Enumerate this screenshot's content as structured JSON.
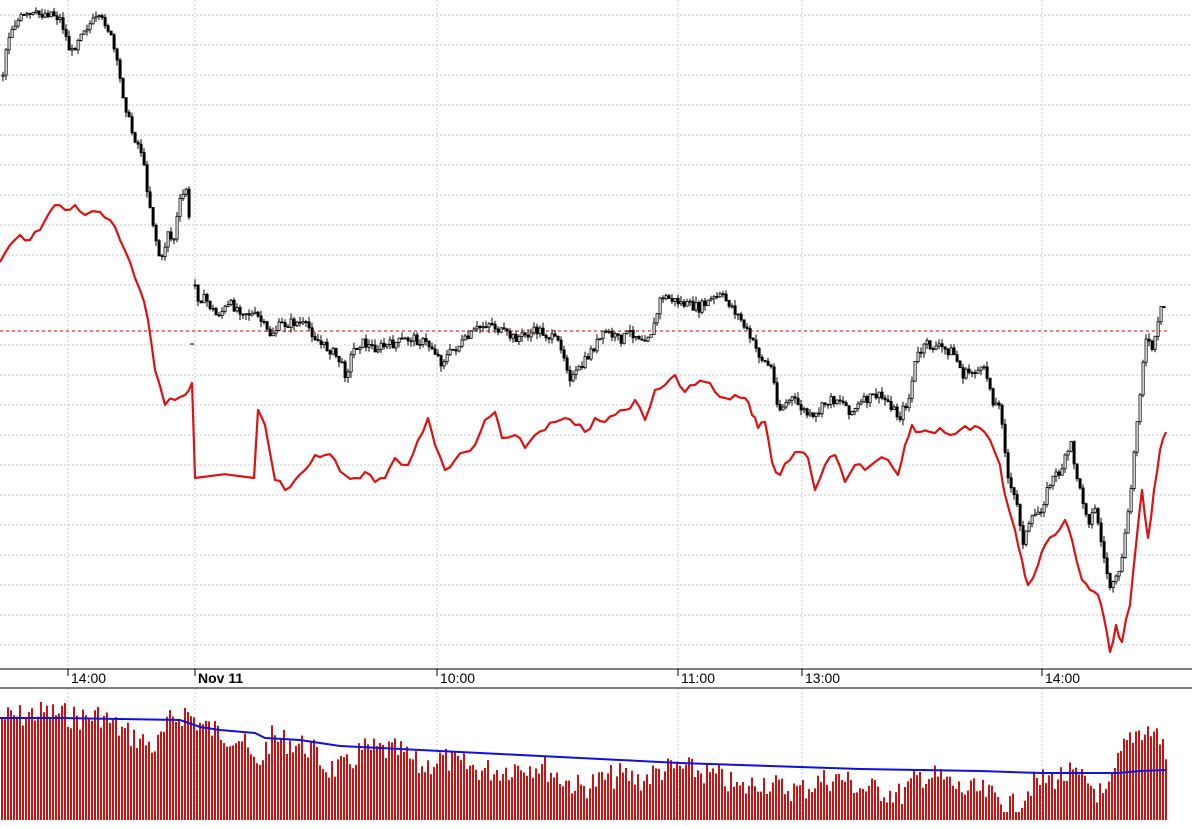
{
  "chart_data": {
    "type": "line",
    "title": "",
    "xlabel": "",
    "ylabel": "",
    "grid": true,
    "legend": "none",
    "x_tick_labels": [
      "14:00",
      "Nov 11",
      "10:00",
      "11:00",
      "13:00",
      "14:00"
    ],
    "x_tick_bold": [
      false,
      true,
      false,
      false,
      false,
      false
    ],
    "reference_line": {
      "style": "dashed",
      "color": "#cc0000"
    },
    "colors": {
      "candle_up": "#000000",
      "candle_down": "#000000",
      "comparison_line": "#dd1111",
      "volume_bar": "#cc1111",
      "volume_average": "#1010dd",
      "grid": "#c8c8c8",
      "axis": "#000000"
    },
    "price_anchors": [
      [
        0,
        95
      ],
      [
        6,
        40
      ],
      [
        12,
        25
      ],
      [
        20,
        18
      ],
      [
        35,
        15
      ],
      [
        50,
        12
      ],
      [
        60,
        20
      ],
      [
        70,
        55
      ],
      [
        80,
        30
      ],
      [
        95,
        20
      ],
      [
        105,
        22
      ],
      [
        112,
        45
      ],
      [
        120,
        85
      ],
      [
        130,
        130
      ],
      [
        140,
        150
      ],
      [
        148,
        200
      ],
      [
        155,
        240
      ],
      [
        160,
        265
      ],
      [
        167,
        230
      ],
      [
        172,
        245
      ],
      [
        178,
        205
      ],
      [
        185,
        188
      ],
      [
        195,
        296
      ],
      [
        205,
        300
      ],
      [
        215,
        315
      ],
      [
        230,
        305
      ],
      [
        245,
        312
      ],
      [
        258,
        318
      ],
      [
        268,
        335
      ],
      [
        280,
        325
      ],
      [
        295,
        322
      ],
      [
        308,
        328
      ],
      [
        320,
        345
      ],
      [
        330,
        350
      ],
      [
        338,
        360
      ],
      [
        345,
        375
      ],
      [
        352,
        350
      ],
      [
        360,
        342
      ],
      [
        372,
        348
      ],
      [
        385,
        346
      ],
      [
        398,
        342
      ],
      [
        410,
        338
      ],
      [
        422,
        342
      ],
      [
        432,
        348
      ],
      [
        440,
        362
      ],
      [
        452,
        350
      ],
      [
        465,
        340
      ],
      [
        475,
        330
      ],
      [
        488,
        322
      ],
      [
        500,
        332
      ],
      [
        512,
        338
      ],
      [
        525,
        335
      ],
      [
        538,
        330
      ],
      [
        550,
        338
      ],
      [
        560,
        345
      ],
      [
        570,
        380
      ],
      [
        580,
        368
      ],
      [
        592,
        348
      ],
      [
        605,
        332
      ],
      [
        618,
        340
      ],
      [
        630,
        332
      ],
      [
        642,
        338
      ],
      [
        652,
        330
      ],
      [
        660,
        296
      ],
      [
        672,
        300
      ],
      [
        685,
        305
      ],
      [
        698,
        308
      ],
      [
        710,
        300
      ],
      [
        720,
        296
      ],
      [
        730,
        305
      ],
      [
        740,
        320
      ],
      [
        750,
        340
      ],
      [
        760,
        358
      ],
      [
        770,
        368
      ],
      [
        778,
        410
      ],
      [
        790,
        398
      ],
      [
        800,
        408
      ],
      [
        812,
        420
      ],
      [
        825,
        402
      ],
      [
        838,
        398
      ],
      [
        850,
        412
      ],
      [
        862,
        402
      ],
      [
        875,
        395
      ],
      [
        888,
        402
      ],
      [
        898,
        418
      ],
      [
        908,
        398
      ],
      [
        915,
        358
      ],
      [
        925,
        345
      ],
      [
        940,
        348
      ],
      [
        952,
        352
      ],
      [
        962,
        375
      ],
      [
        975,
        370
      ],
      [
        985,
        372
      ],
      [
        992,
        400
      ],
      [
        1000,
        410
      ],
      [
        1008,
        488
      ],
      [
        1015,
        500
      ],
      [
        1022,
        540
      ],
      [
        1032,
        518
      ],
      [
        1040,
        508
      ],
      [
        1050,
        480
      ],
      [
        1060,
        470
      ],
      [
        1070,
        445
      ],
      [
        1078,
        488
      ],
      [
        1088,
        520
      ],
      [
        1095,
        508
      ],
      [
        1102,
        555
      ],
      [
        1110,
        590
      ],
      [
        1118,
        575
      ],
      [
        1128,
        510
      ],
      [
        1136,
        420
      ],
      [
        1144,
        340
      ],
      [
        1152,
        350
      ],
      [
        1160,
        310
      ],
      [
        1166,
        305
      ]
    ],
    "comparison_anchors": [
      [
        0,
        262
      ],
      [
        10,
        245
      ],
      [
        20,
        235
      ],
      [
        30,
        240
      ],
      [
        40,
        230
      ],
      [
        48,
        215
      ],
      [
        55,
        205
      ],
      [
        65,
        210
      ],
      [
        75,
        205
      ],
      [
        85,
        215
      ],
      [
        100,
        212
      ],
      [
        110,
        220
      ],
      [
        120,
        240
      ],
      [
        130,
        262
      ],
      [
        140,
        290
      ],
      [
        148,
        320
      ],
      [
        155,
        370
      ],
      [
        165,
        405
      ],
      [
        175,
        400
      ],
      [
        185,
        395
      ],
      [
        192,
        383
      ],
      [
        195,
        478
      ],
      [
        254,
        478
      ],
      [
        258,
        410
      ],
      [
        265,
        425
      ],
      [
        275,
        480
      ],
      [
        285,
        490
      ],
      [
        295,
        480
      ],
      [
        305,
        470
      ],
      [
        315,
        455
      ],
      [
        325,
        455
      ],
      [
        335,
        460
      ],
      [
        345,
        475
      ],
      [
        355,
        478
      ],
      [
        365,
        472
      ],
      [
        375,
        482
      ],
      [
        385,
        478
      ],
      [
        395,
        458
      ],
      [
        408,
        465
      ],
      [
        418,
        440
      ],
      [
        428,
        418
      ],
      [
        435,
        445
      ],
      [
        445,
        470
      ],
      [
        455,
        460
      ],
      [
        465,
        452
      ],
      [
        475,
        445
      ],
      [
        485,
        420
      ],
      [
        495,
        412
      ],
      [
        502,
        438
      ],
      [
        515,
        435
      ],
      [
        525,
        448
      ],
      [
        535,
        435
      ],
      [
        545,
        430
      ],
      [
        555,
        422
      ],
      [
        565,
        418
      ],
      [
        575,
        425
      ],
      [
        585,
        432
      ],
      [
        595,
        418
      ],
      [
        605,
        422
      ],
      [
        615,
        415
      ],
      [
        625,
        410
      ],
      [
        635,
        400
      ],
      [
        645,
        420
      ],
      [
        655,
        390
      ],
      [
        665,
        385
      ],
      [
        675,
        375
      ],
      [
        685,
        392
      ],
      [
        695,
        385
      ],
      [
        705,
        382
      ],
      [
        715,
        392
      ],
      [
        725,
        398
      ],
      [
        735,
        395
      ],
      [
        745,
        398
      ],
      [
        752,
        415
      ],
      [
        758,
        428
      ],
      [
        765,
        422
      ],
      [
        772,
        462
      ],
      [
        780,
        475
      ],
      [
        790,
        460
      ],
      [
        800,
        452
      ],
      [
        808,
        458
      ],
      [
        815,
        490
      ],
      [
        825,
        465
      ],
      [
        835,
        455
      ],
      [
        845,
        482
      ],
      [
        855,
        465
      ],
      [
        865,
        470
      ],
      [
        875,
        462
      ],
      [
        888,
        460
      ],
      [
        898,
        475
      ],
      [
        905,
        445
      ],
      [
        912,
        425
      ],
      [
        920,
        432
      ],
      [
        930,
        432
      ],
      [
        940,
        428
      ],
      [
        950,
        435
      ],
      [
        960,
        430
      ],
      [
        970,
        430
      ],
      [
        980,
        428
      ],
      [
        990,
        440
      ],
      [
        1000,
        465
      ],
      [
        1005,
        495
      ],
      [
        1015,
        530
      ],
      [
        1022,
        560
      ],
      [
        1028,
        585
      ],
      [
        1038,
        565
      ],
      [
        1045,
        545
      ],
      [
        1055,
        535
      ],
      [
        1065,
        520
      ],
      [
        1072,
        540
      ],
      [
        1082,
        580
      ],
      [
        1090,
        590
      ],
      [
        1098,
        595
      ],
      [
        1104,
        618
      ],
      [
        1110,
        652
      ],
      [
        1116,
        625
      ],
      [
        1122,
        642
      ],
      [
        1130,
        605
      ],
      [
        1136,
        545
      ],
      [
        1142,
        490
      ],
      [
        1148,
        538
      ],
      [
        1154,
        490
      ],
      [
        1160,
        450
      ],
      [
        1166,
        432
      ]
    ],
    "volume_anchors": [
      [
        0,
        718
      ],
      [
        20,
        716
      ],
      [
        40,
        712
      ],
      [
        60,
        714
      ],
      [
        80,
        718
      ],
      [
        100,
        715
      ],
      [
        120,
        730
      ],
      [
        140,
        740
      ],
      [
        155,
        748
      ],
      [
        170,
        720
      ],
      [
        185,
        712
      ],
      [
        200,
        725
      ],
      [
        220,
        733
      ],
      [
        240,
        738
      ],
      [
        255,
        768
      ],
      [
        270,
        738
      ],
      [
        290,
        742
      ],
      [
        310,
        748
      ],
      [
        325,
        768
      ],
      [
        345,
        768
      ],
      [
        360,
        750
      ],
      [
        380,
        750
      ],
      [
        400,
        752
      ],
      [
        420,
        768
      ],
      [
        440,
        758
      ],
      [
        460,
        765
      ],
      [
        480,
        770
      ],
      [
        500,
        770
      ],
      [
        520,
        765
      ],
      [
        540,
        765
      ],
      [
        560,
        778
      ],
      [
        580,
        788
      ],
      [
        600,
        780
      ],
      [
        620,
        775
      ],
      [
        640,
        780
      ],
      [
        660,
        770
      ],
      [
        680,
        768
      ],
      [
        700,
        772
      ],
      [
        720,
        778
      ],
      [
        740,
        790
      ],
      [
        760,
        780
      ],
      [
        780,
        788
      ],
      [
        800,
        790
      ],
      [
        820,
        780
      ],
      [
        840,
        778
      ],
      [
        860,
        788
      ],
      [
        880,
        790
      ],
      [
        900,
        795
      ],
      [
        920,
        775
      ],
      [
        940,
        778
      ],
      [
        960,
        790
      ],
      [
        980,
        792
      ],
      [
        1000,
        800
      ],
      [
        1015,
        808
      ],
      [
        1030,
        785
      ],
      [
        1050,
        778
      ],
      [
        1070,
        775
      ],
      [
        1090,
        785
      ],
      [
        1105,
        800
      ],
      [
        1118,
        760
      ],
      [
        1128,
        738
      ],
      [
        1138,
        730
      ],
      [
        1150,
        730
      ],
      [
        1160,
        738
      ],
      [
        1166,
        760
      ]
    ],
    "volume_average_anchors": [
      [
        0,
        718
      ],
      [
        60,
        718
      ],
      [
        120,
        719
      ],
      [
        180,
        720
      ],
      [
        200,
        727
      ],
      [
        220,
        730
      ],
      [
        255,
        733
      ],
      [
        265,
        738
      ],
      [
        300,
        740
      ],
      [
        320,
        743
      ],
      [
        340,
        746
      ],
      [
        380,
        748
      ],
      [
        440,
        751
      ],
      [
        500,
        754
      ],
      [
        560,
        757
      ],
      [
        620,
        760
      ],
      [
        680,
        763
      ],
      [
        740,
        765
      ],
      [
        800,
        767
      ],
      [
        860,
        769
      ],
      [
        920,
        770
      ],
      [
        980,
        771
      ],
      [
        1040,
        773
      ],
      [
        1118,
        773
      ],
      [
        1140,
        771
      ],
      [
        1166,
        770
      ]
    ]
  }
}
